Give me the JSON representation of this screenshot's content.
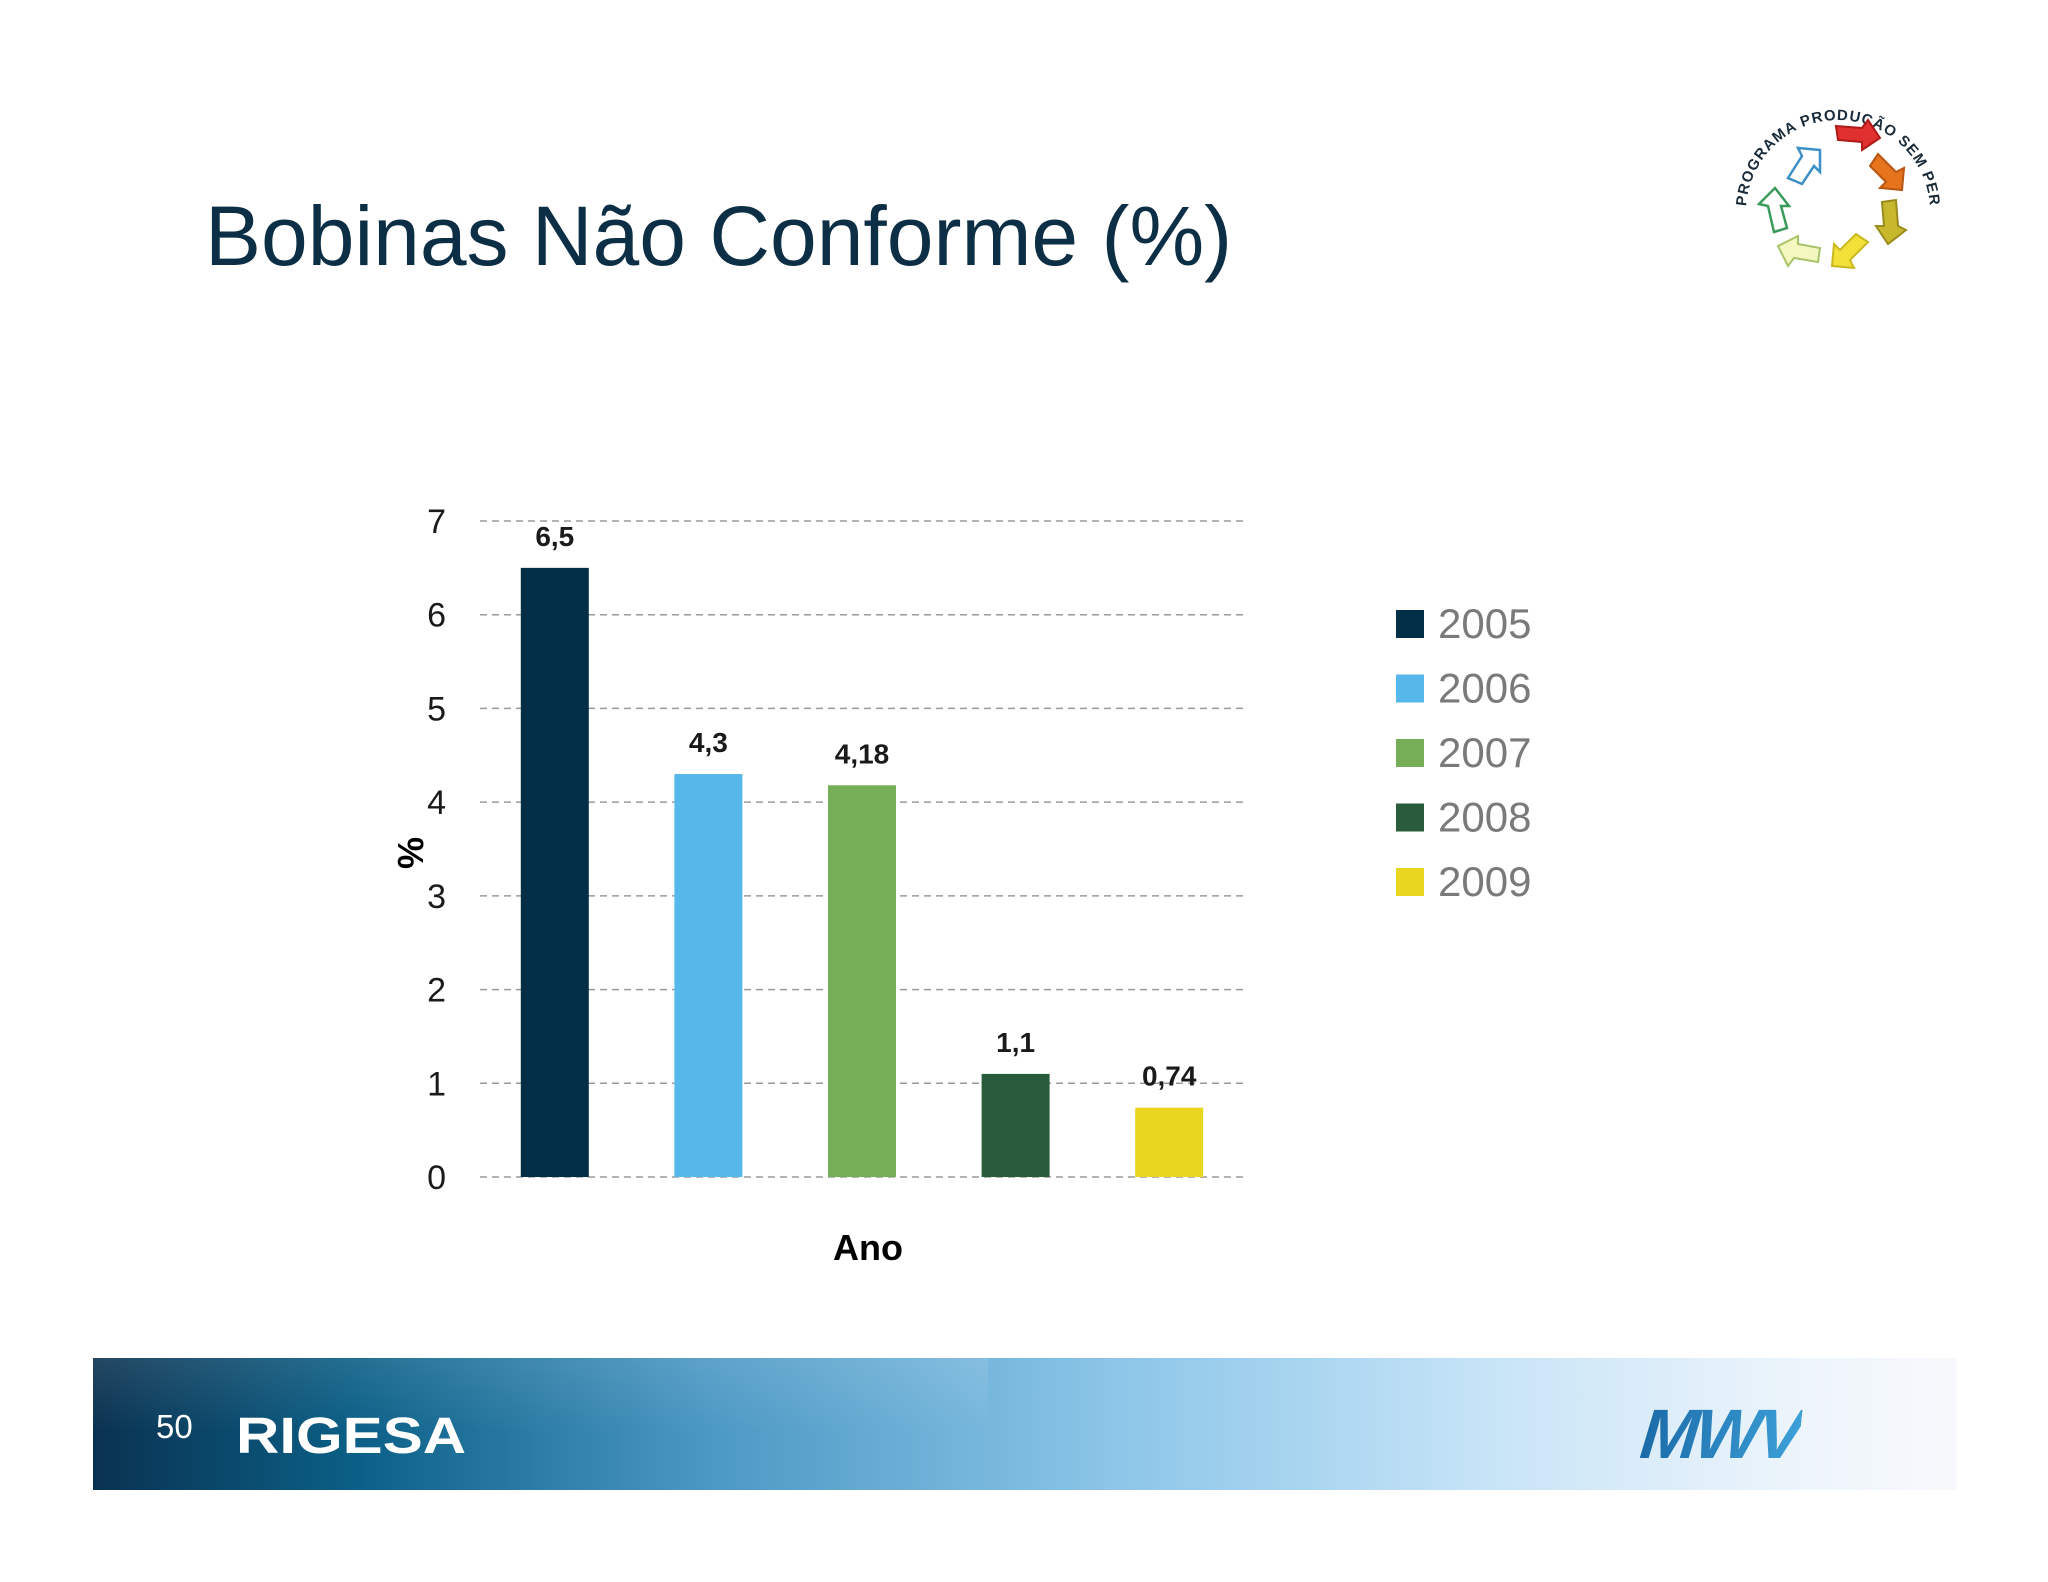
{
  "slide": {
    "title": "Bobinas Não Conforme (%)",
    "page_number": "50",
    "footer_company": "RIGESA",
    "footer_brand": "MWV",
    "logo_text": "PROGRAMA PRODUÇÃO SEM PERDAS"
  },
  "chart_data": {
    "type": "bar",
    "title": "",
    "xlabel": "Ano",
    "ylabel": "%",
    "ylim": [
      0,
      7
    ],
    "yticks": [
      "0",
      "1",
      "2",
      "3",
      "4",
      "5",
      "6",
      "7"
    ],
    "grid": true,
    "legend_position": "right",
    "categories": [
      "2005",
      "2006",
      "2007",
      "2008",
      "2009"
    ],
    "values": [
      6.5,
      4.3,
      4.18,
      1.1,
      0.74
    ],
    "data_labels": [
      "6,5",
      "4,3",
      "4,18",
      "1,1",
      "0,74"
    ],
    "colors": [
      "#022f45",
      "#56b8ea",
      "#76ad57",
      "#285c3b",
      "#e8d61f"
    ],
    "legend": [
      "2005",
      "2006",
      "2007",
      "2008",
      "2009"
    ]
  }
}
